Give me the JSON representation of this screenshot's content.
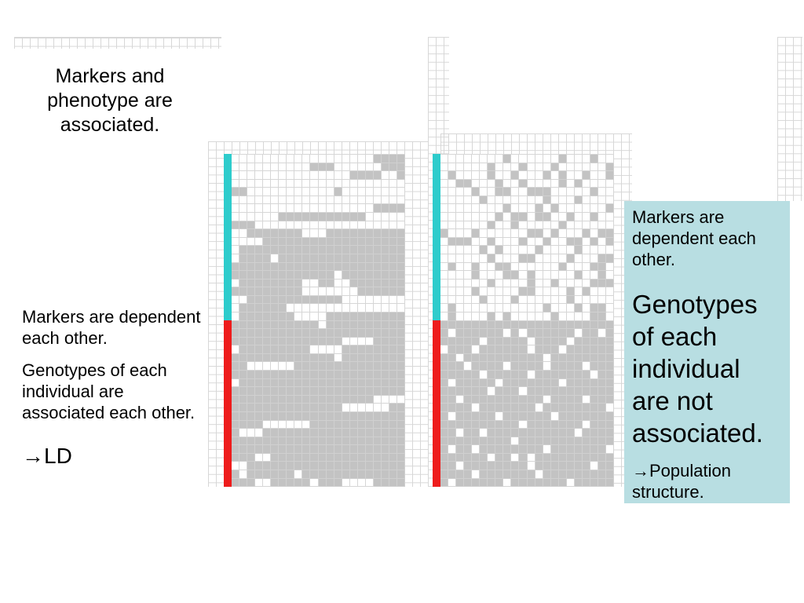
{
  "title": {
    "lines": [
      "Markers and",
      "phenotype are",
      "associated."
    ]
  },
  "left_note": {
    "para1": [
      "Markers are dependent",
      "each other."
    ],
    "para2": [
      "Genotypes of each",
      "individual are",
      "associated each other."
    ],
    "conclusion": "→LD"
  },
  "right_box": {
    "background": "#b8dee2",
    "para1": [
      "Markers are",
      "dependent each",
      "other."
    ],
    "para2": [
      "Genotypes",
      "of each",
      "individual",
      "are not",
      "associated."
    ],
    "para3": [
      "→Population",
      "structure."
    ]
  },
  "colors": {
    "filled_cell": "#c3c3c3",
    "empty_cell": "#ffffff",
    "grid_line": "#d6d6d6"
  },
  "panels": [
    {
      "groups": [
        {
          "color": "#2ecccc",
          "rows": [
            "0000000000000000001111",
            "0000000000111000000111",
            "0000000000000001111001",
            "0000000000000000000000",
            "1100000000000100000000",
            "0000000000000000000000",
            "0000000000000000001111",
            "0000001111111111100000",
            "1110000000000000000000",
            "0011111110001111111111",
            "0000111111111111111111",
            "0111111111111111111111",
            "0111101111111111111111",
            "1111111111111111111111",
            "1111111111111011111111",
            "0111111110011001111111",
            "1111111110000000111111",
            "0011111111111100000000",
            "0111111000000000000000",
            "0111111100001111111111"
          ]
        },
        {
          "color": "#ee1c1c",
          "rows": [
            "1111111111101111111111",
            "1111111111111111111111",
            "1111111111111100001111",
            "0111111111000011111111",
            "1111111111111011111111",
            "1100000011111111111111",
            "1111111111111111111111",
            "0111111111111111111111",
            "1111111111111111111111",
            "1111111111111111110000",
            "1111111111111100000011",
            "1111111111111111111111",
            "1111000000111111111111",
            "1000111111111111111111",
            "1111111111111111111111",
            "1111111111111111111111",
            "1110011111111111111111",
            "0011111111111111111111",
            "1011111101111111111111",
            "1110011111011100001111"
          ]
        }
      ]
    },
    {
      "groups": [
        {
          "color": "#2ecccc",
          "rows": [
            "0000000010000001000100",
            "0000001000100010000001",
            "0100001001000101001001",
            "0011000100100001010000",
            "0000100110011100000100",
            "0000010000000100010000",
            "0000000010001010000001",
            "0000000101101100100100",
            "0000001001000001000000",
            "1000100000011010001011",
            "0111001000100100110101",
            "0000010100001000010000",
            "0000001000110000100011",
            "0100100110000001000110",
            "0000100011010000010010",
            "0000001000010010000111",
            "0000100000110000101000",
            "0000010001000000100000",
            "0100000000000100010110",
            "0100001010000010000110"
          ]
        },
        {
          "color": "#ee1c1c",
          "rows": [
            "1111111111111111111111",
            "1011111101011111101101",
            "1111101111101111011111",
            "0111011111101110111111",
            "1101111111111011111111",
            "1110111101111011110111",
            "1111101111101111111011",
            "1011111011111110111111",
            "1111110111011111111111",
            "1101111111111011110111",
            "1111011111110111111110",
            "1011111011111101111111",
            "1111111111011111110111",
            "1101101111111111101111",
            "1111111110111111111111",
            "1011011111111011111110",
            "1111110110101111111111",
            "1101111111101111111011",
            "1111011111110111111111",
            "1011111101111111011111"
          ]
        }
      ]
    }
  ]
}
